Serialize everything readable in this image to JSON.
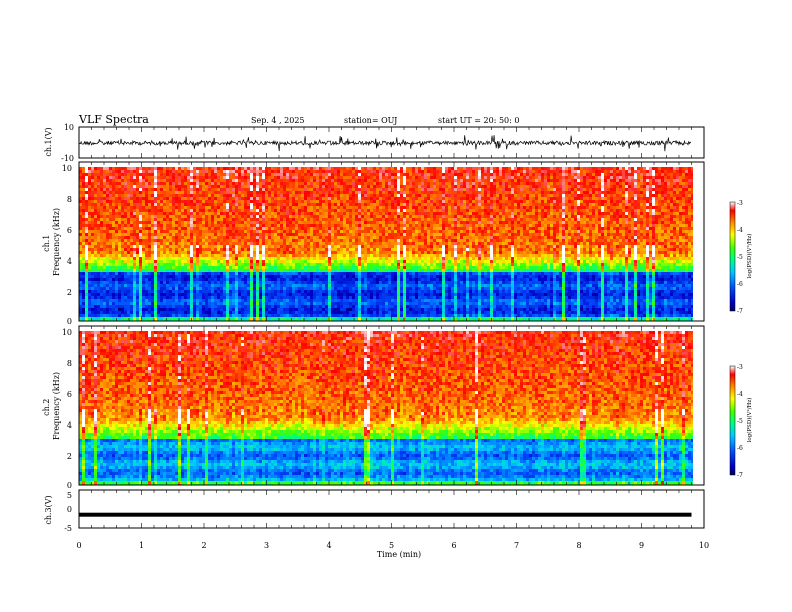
{
  "header": {
    "title": "VLF Spectra",
    "date": "Sep. 4  , 2025",
    "station": "station= OUJ",
    "start": "start  UT  =   20: 50: 0"
  },
  "chart_data": [
    {
      "type": "line",
      "ylabel": "ch.1(V)",
      "ylim": [
        -10,
        10
      ],
      "yticks": [
        "10",
        "-10"
      ],
      "xlim": [
        0,
        10
      ],
      "description_value": "noisy waveform around -1 V spanning 0 to 9.8 min"
    },
    {
      "type": "heatmap",
      "ylabel": "ch.1\nFrequency (kHz)",
      "ylim": [
        0,
        10
      ],
      "yticks": [
        "0",
        "2",
        "4",
        "6",
        "8",
        "10"
      ],
      "xlim": [
        0,
        10
      ],
      "data_end_min": 9.8,
      "colorbar": {
        "label": "log(PSD)(V²/Hz)",
        "ticks": [
          "-3",
          "-4",
          "-5",
          "-6",
          "-7"
        ],
        "range": [
          -7,
          -3
        ]
      }
    },
    {
      "type": "heatmap",
      "ylabel": "ch.2\nFrequency (kHz)",
      "ylim": [
        0,
        10
      ],
      "yticks": [
        "0",
        "2",
        "4",
        "6",
        "8",
        "10"
      ],
      "xlim": [
        0,
        10
      ],
      "data_end_min": 9.8,
      "colorbar": {
        "label": "log(PSD)(V²/Hz)",
        "ticks": [
          "-3",
          "-4",
          "-5",
          "-6",
          "-7"
        ],
        "range": [
          -7,
          -3
        ]
      }
    },
    {
      "type": "line",
      "ylabel": "ch.3(V)",
      "ylim": [
        -5,
        5
      ],
      "yticks": [
        "5",
        "0",
        "-5"
      ],
      "xlim": [
        0,
        10
      ],
      "constant_value": -1.5
    }
  ],
  "xaxis": {
    "label": "Time (min)",
    "ticks": [
      "0",
      "1",
      "2",
      "3",
      "4",
      "5",
      "6",
      "7",
      "8",
      "9",
      "10"
    ]
  },
  "colors": {
    "axis": "#000000",
    "background": "#ffffff"
  }
}
